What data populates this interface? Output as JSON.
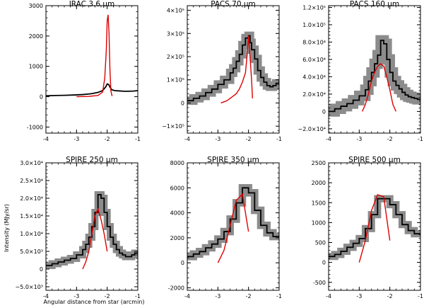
{
  "figure": {
    "xlabel": "Angular distance from star (arcmin)",
    "ylabel": "Intensity (MJy/sr)"
  },
  "chart_data": [
    {
      "type": "line",
      "title": "IRAC 3.6 μm",
      "xlim": [
        -4,
        -1
      ],
      "ylim": [
        -1200,
        3000
      ],
      "xticks": [
        "-4",
        "-3",
        "-2",
        "-1"
      ],
      "xtick_values": [
        -4,
        -3,
        -2,
        -1
      ],
      "yticks": [
        "-1000",
        "0",
        "1000",
        "2000",
        "3000"
      ],
      "ytick_values": [
        -1000,
        0,
        1000,
        2000,
        3000
      ],
      "series": [
        {
          "style": "observed",
          "color": "#000000",
          "x": [
            -4.0,
            -3.7,
            -3.4,
            -3.1,
            -2.8,
            -2.5,
            -2.3,
            -2.15,
            -2.05,
            -2.0,
            -1.95,
            -1.9,
            -1.85,
            -1.75,
            -1.6,
            -1.45,
            -1.3,
            -1.15,
            -1.0
          ],
          "y": [
            30,
            40,
            45,
            55,
            70,
            100,
            140,
            200,
            320,
            420,
            400,
            300,
            230,
            200,
            190,
            180,
            180,
            185,
            200
          ]
        },
        {
          "style": "model",
          "color": "#dd0000",
          "x": [
            -3.0,
            -2.6,
            -2.3,
            -2.15,
            -2.08,
            -2.03,
            -2.0,
            -1.97,
            -1.94,
            -1.91,
            -1.88,
            -1.84
          ],
          "y": [
            0,
            10,
            40,
            150,
            600,
            1500,
            2500,
            2700,
            2100,
            900,
            200,
            20
          ]
        }
      ]
    },
    {
      "type": "line",
      "title": "PACS 70 μm",
      "xlim": [
        -4,
        -1
      ],
      "ylim": [
        -130000,
        420000
      ],
      "xticks": [
        "-4",
        "-3",
        "-2",
        "-1"
      ],
      "xtick_values": [
        -4,
        -3,
        -2,
        -1
      ],
      "yticks": [
        "−1×10⁵",
        "0",
        "1×10⁵",
        "2×10⁵",
        "3×10⁵",
        "4×10⁵"
      ],
      "ytick_values": [
        -100000,
        0,
        100000,
        200000,
        300000,
        400000
      ],
      "series": [
        {
          "style": "observed",
          "color": "#000000",
          "band": 18000,
          "x": [
            -4.0,
            -3.8,
            -3.6,
            -3.4,
            -3.2,
            -3.0,
            -2.8,
            -2.6,
            -2.5,
            -2.4,
            -2.3,
            -2.2,
            -2.1,
            -2.0,
            -1.95,
            -1.9,
            -1.8,
            -1.7,
            -1.6,
            -1.5,
            -1.4,
            -1.3,
            -1.2,
            -1.1,
            -1.0
          ],
          "y": [
            10000,
            20000,
            30000,
            45000,
            60000,
            80000,
            100000,
            130000,
            150000,
            180000,
            210000,
            250000,
            280000,
            290000,
            260000,
            230000,
            190000,
            140000,
            110000,
            90000,
            75000,
            70000,
            75000,
            85000,
            95000
          ]
        },
        {
          "style": "model",
          "color": "#dd0000",
          "x": [
            -2.9,
            -2.8,
            -2.7,
            -2.6,
            -2.5,
            -2.4,
            -2.3,
            -2.2,
            -2.1,
            -2.05,
            -2.0,
            -1.95,
            -1.9,
            -1.87
          ],
          "y": [
            0,
            5000,
            10000,
            20000,
            30000,
            40000,
            60000,
            90000,
            130000,
            200000,
            290000,
            200000,
            100000,
            20000
          ]
        }
      ]
    },
    {
      "type": "line",
      "title": "PACS 160 μm",
      "xlim": [
        -4,
        -1
      ],
      "ylim": [
        -25000,
        122000
      ],
      "xticks": [
        "-4",
        "-3",
        "-2",
        "-1"
      ],
      "xtick_values": [
        -4,
        -3,
        -2,
        -1
      ],
      "yticks": [
        "−2.0×10⁴",
        "0",
        "2.0×10⁴",
        "4.0×10⁴",
        "6.0×10⁴",
        "8.0×10⁴",
        "1.0×10⁵",
        "1.2×10⁵"
      ],
      "ytick_values": [
        -20000,
        0,
        20000,
        40000,
        60000,
        80000,
        100000,
        120000
      ],
      "series": [
        {
          "style": "observed",
          "color": "#000000",
          "band": 6000,
          "x": [
            -4.0,
            -3.8,
            -3.6,
            -3.4,
            -3.2,
            -3.0,
            -2.8,
            -2.7,
            -2.6,
            -2.5,
            -2.4,
            -2.3,
            -2.2,
            -2.1,
            -2.0,
            -1.9,
            -1.8,
            -1.7,
            -1.6,
            -1.5,
            -1.4,
            -1.3,
            -1.2,
            -1.1,
            -1.0
          ],
          "y": [
            0,
            3000,
            6000,
            9000,
            13000,
            18000,
            25000,
            35000,
            45000,
            55000,
            65000,
            82000,
            78000,
            60000,
            45000,
            35000,
            30000,
            26000,
            22000,
            19000,
            17000,
            16000,
            15000,
            14000,
            14000
          ]
        },
        {
          "style": "model",
          "color": "#dd0000",
          "x": [
            -2.9,
            -2.8,
            -2.7,
            -2.6,
            -2.5,
            -2.4,
            -2.3,
            -2.2,
            -2.1,
            -2.0,
            -1.9,
            -1.8
          ],
          "y": [
            0,
            8000,
            20000,
            35000,
            45000,
            52000,
            55000,
            52000,
            40000,
            25000,
            8000,
            0
          ]
        }
      ]
    },
    {
      "type": "line",
      "title": "SPIRE 250 μm",
      "xlim": [
        -4,
        -1
      ],
      "ylim": [
        -6000,
        30000
      ],
      "xticks": [
        "-4",
        "-3",
        "-2",
        "-1"
      ],
      "xtick_values": [
        -4,
        -3,
        -2,
        -1
      ],
      "yticks": [
        "−5.0×10³",
        "0",
        "5.0×10³",
        "1.0×10⁴",
        "1.5×10⁴",
        "2.0×10⁴",
        "2.5×10⁴",
        "3.0×10⁴"
      ],
      "ytick_values": [
        -5000,
        0,
        5000,
        10000,
        15000,
        20000,
        25000,
        30000
      ],
      "series": [
        {
          "style": "observed",
          "color": "#000000",
          "band": 1000,
          "x": [
            -4.0,
            -3.8,
            -3.6,
            -3.4,
            -3.2,
            -3.0,
            -2.8,
            -2.7,
            -2.6,
            -2.5,
            -2.4,
            -2.3,
            -2.2,
            -2.1,
            -2.0,
            -1.9,
            -1.8,
            -1.7,
            -1.6,
            -1.5,
            -1.4,
            -1.3,
            -1.2,
            -1.1,
            -1.0
          ],
          "y": [
            1000,
            1500,
            2000,
            2500,
            3000,
            4000,
            5500,
            7000,
            9000,
            12000,
            16000,
            21000,
            20000,
            16000,
            12000,
            9000,
            7000,
            5500,
            4500,
            4000,
            3500,
            3500,
            4000,
            4500,
            5000
          ]
        },
        {
          "style": "model",
          "color": "#dd0000",
          "x": [
            -2.8,
            -2.7,
            -2.6,
            -2.5,
            -2.4,
            -2.3,
            -2.2,
            -2.1,
            -2.0
          ],
          "y": [
            0,
            2000,
            5000,
            10000,
            15000,
            17000,
            14000,
            10000,
            5000
          ]
        }
      ]
    },
    {
      "type": "line",
      "title": "SPIRE 350 μm",
      "xlim": [
        -4,
        -1
      ],
      "ylim": [
        -2200,
        8000
      ],
      "xticks": [
        "-4",
        "-3",
        "-2",
        "-1"
      ],
      "xtick_values": [
        -4,
        -3,
        -2,
        -1
      ],
      "yticks": [
        "-2000",
        "0",
        "2000",
        "4000",
        "6000",
        "8000"
      ],
      "ytick_values": [
        -2000,
        0,
        2000,
        4000,
        6000,
        8000
      ],
      "series": [
        {
          "style": "observed",
          "color": "#000000",
          "band": 300,
          "x": [
            -4.0,
            -3.8,
            -3.6,
            -3.4,
            -3.2,
            -3.0,
            -2.8,
            -2.6,
            -2.4,
            -2.2,
            -2.0,
            -1.8,
            -1.6,
            -1.4,
            -1.2,
            -1.0
          ],
          "y": [
            500,
            700,
            900,
            1200,
            1500,
            1900,
            2500,
            3500,
            4800,
            6000,
            5600,
            4200,
            3000,
            2400,
            2100,
            2200
          ]
        },
        {
          "style": "model",
          "color": "#dd0000",
          "x": [
            -3.0,
            -2.8,
            -2.6,
            -2.4,
            -2.2,
            -2.0
          ],
          "y": [
            0,
            1000,
            3000,
            5000,
            5500,
            2500
          ]
        }
      ]
    },
    {
      "type": "line",
      "title": "SPIRE 500 μm",
      "xlim": [
        -4,
        -1
      ],
      "ylim": [
        -700,
        2500
      ],
      "xticks": [
        "-4",
        "-3",
        "-2",
        "-1"
      ],
      "xtick_values": [
        -4,
        -3,
        -2,
        -1
      ],
      "yticks": [
        "-500",
        "0",
        "500",
        "1000",
        "1500",
        "2000",
        "2500"
      ],
      "ytick_values": [
        -500,
        0,
        500,
        1000,
        1500,
        2000,
        2500
      ],
      "series": [
        {
          "style": "observed",
          "color": "#000000",
          "band": 90,
          "x": [
            -4.0,
            -3.8,
            -3.6,
            -3.4,
            -3.2,
            -3.0,
            -2.8,
            -2.6,
            -2.4,
            -2.2,
            -2.0,
            -1.8,
            -1.6,
            -1.4,
            -1.2,
            -1.0
          ],
          "y": [
            150,
            200,
            280,
            380,
            480,
            600,
            850,
            1200,
            1600,
            1600,
            1450,
            1200,
            950,
            800,
            720,
            700
          ]
        },
        {
          "style": "model",
          "color": "#dd0000",
          "x": [
            -3.0,
            -2.8,
            -2.6,
            -2.4,
            -2.2,
            -2.0
          ],
          "y": [
            0,
            550,
            1300,
            1700,
            1650,
            550
          ]
        }
      ]
    }
  ]
}
